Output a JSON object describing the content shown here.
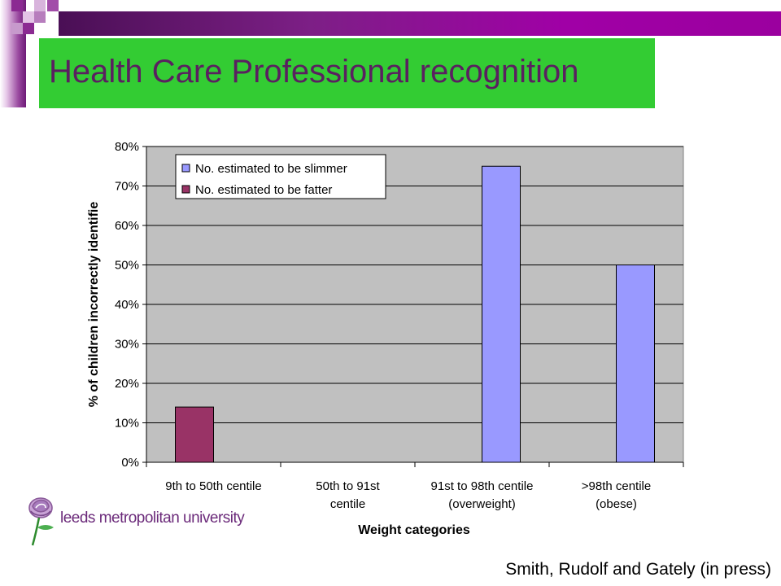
{
  "slide": {
    "title": "Health Care Professional recognition",
    "citation": "Smith, Rudolf and Gately (in press)",
    "logo_text": "leeds metropolitan university"
  },
  "colors": {
    "title_bg": "#33cc33",
    "title_text": "#5a2060",
    "band": "#8b1a93",
    "plot_bg": "#c0c0c0",
    "slimmer": "#9999ff",
    "fatter": "#993366"
  },
  "chart_data": {
    "type": "bar",
    "categories": [
      [
        "9th to 50th centile"
      ],
      [
        "50th    to 91st",
        "centile"
      ],
      [
        "91st to 98th centile",
        "(overweight)"
      ],
      [
        ">98th centile",
        "(obese)"
      ]
    ],
    "series": [
      {
        "name": "No. estimated to be slimmer",
        "color": "#9999ff",
        "values": [
          null,
          null,
          75,
          50
        ]
      },
      {
        "name": "No. estimated to be fatter",
        "color": "#993366",
        "values": [
          14,
          null,
          null,
          null
        ]
      }
    ],
    "ylabel": "% of children incorrectly identifie",
    "xlabel": "Weight categories",
    "ylim": [
      0,
      80
    ],
    "yticks": [
      "0%",
      "10%",
      "20%",
      "30%",
      "40%",
      "50%",
      "60%",
      "70%",
      "80%"
    ],
    "grid": true,
    "legend": "top-left"
  }
}
